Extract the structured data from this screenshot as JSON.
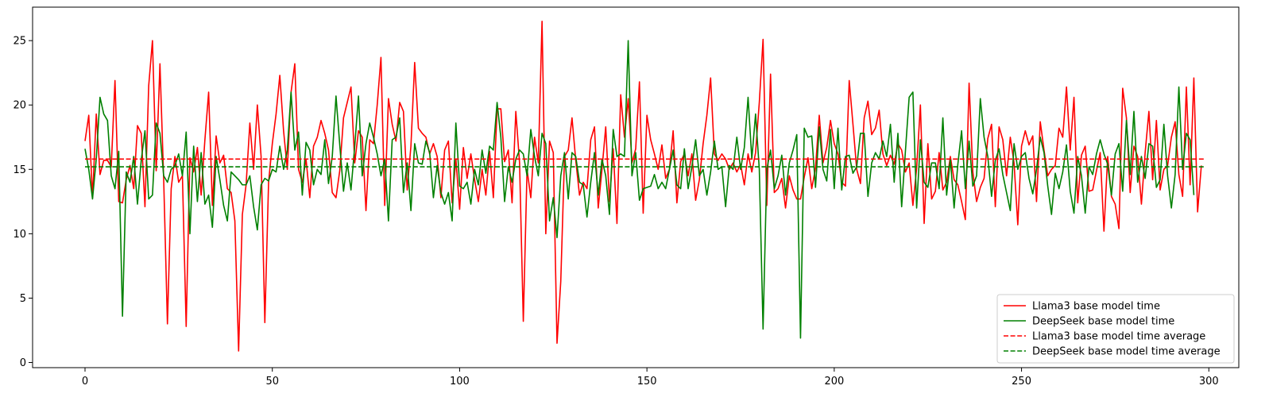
{
  "chart_data": {
    "type": "line",
    "title": "",
    "xlabel": "",
    "ylabel": "",
    "xlim": [
      -14,
      308
    ],
    "ylim": [
      -0.4,
      27.6
    ],
    "xticks": [
      0,
      50,
      100,
      150,
      200,
      250,
      300
    ],
    "yticks": [
      0,
      5,
      10,
      15,
      20,
      25
    ],
    "grid": false,
    "legend_location": "lower-right",
    "series": [
      {
        "name": "Llama3 base model time",
        "color": "#ff0000",
        "style": "solid",
        "x_start": 0,
        "values": [
          17.2,
          19.2,
          12.8,
          19.3,
          14.6,
          15.7,
          15.7,
          15.2,
          21.9,
          12.5,
          12.4,
          14.2,
          15.3,
          13.5,
          18.4,
          17.8,
          12.1,
          21.5,
          25.0,
          14.9,
          23.2,
          14.2,
          3.0,
          13.5,
          16.0,
          14.0,
          14.5,
          2.8,
          15.9,
          14.8,
          16.7,
          13.0,
          17.3,
          21.0,
          12.2,
          17.6,
          15.5,
          16.1,
          13.5,
          13.2,
          11.0,
          0.9,
          11.5,
          13.8,
          18.6,
          15.0,
          20.0,
          16.0,
          3.1,
          14.0,
          17.0,
          19.3,
          22.3,
          18.0,
          15.0,
          21.0,
          23.2,
          15.0,
          14.0,
          15.8,
          12.8,
          16.8,
          17.5,
          18.8,
          17.8,
          16.5,
          13.2,
          12.8,
          14.9,
          19.0,
          20.2,
          21.4,
          15.5,
          18.0,
          17.5,
          11.8,
          17.3,
          17.0,
          20.0,
          23.7,
          12.2,
          20.5,
          18.5,
          17.2,
          20.2,
          19.5,
          13.4,
          16.8,
          23.3,
          18.2,
          17.8,
          17.5,
          16.2,
          17.0,
          16.0,
          12.8,
          16.5,
          17.2,
          12.4,
          15.8,
          11.9,
          16.7,
          14.3,
          16.2,
          14.2,
          12.5,
          15.0,
          13.0,
          16.4,
          12.8,
          19.7,
          19.7,
          15.6,
          16.5,
          12.4,
          19.5,
          15.5,
          3.2,
          15.0,
          12.8,
          17.5,
          15.5,
          26.5,
          10.0,
          17.2,
          16.3,
          1.5,
          6.3,
          16.0,
          16.5,
          19.0,
          15.7,
          13.0,
          14.0,
          13.5,
          17.3,
          18.3,
          12.0,
          15.0,
          18.3,
          12.5,
          16.6,
          10.8,
          20.8,
          17.5,
          20.5,
          15.5,
          16.6,
          21.8,
          11.6,
          19.2,
          17.3,
          16.2,
          15.0,
          16.9,
          14.3,
          15.0,
          18.0,
          12.4,
          15.6,
          16.2,
          14.5,
          16.2,
          12.6,
          14.2,
          17.0,
          19.2,
          22.1,
          16.2,
          15.7,
          16.2,
          15.8,
          15.0,
          15.5,
          14.8,
          15.4,
          13.8,
          16.2,
          14.8,
          16.3,
          20.2,
          25.1,
          12.2,
          22.4,
          13.2,
          13.5,
          14.3,
          12.0,
          14.5,
          13.4,
          12.7,
          12.7,
          14.4,
          15.9,
          13.5,
          15.1,
          19.2,
          15.5,
          16.7,
          18.8,
          17.0,
          16.2,
          14.0,
          13.7,
          21.9,
          18.5,
          15.0,
          13.9,
          19.0,
          20.3,
          17.7,
          18.2,
          19.6,
          16.2,
          15.3,
          16.1,
          15.4,
          17.0,
          16.5,
          14.8,
          15.5,
          12.2,
          15.1,
          20.0,
          10.8,
          17.0,
          12.7,
          13.3,
          16.3,
          13.4,
          14.0,
          16.0,
          14.2,
          13.8,
          12.5,
          11.1,
          21.7,
          14.8,
          12.5,
          13.6,
          14.3,
          17.4,
          18.5,
          12.1,
          18.3,
          17.3,
          14.5,
          17.5,
          15.5,
          10.7,
          16.8,
          18.0,
          16.9,
          17.6,
          12.5,
          18.7,
          16.5,
          14.5,
          15.0,
          15.3,
          18.2,
          17.5,
          21.4,
          16.5,
          20.6,
          12.4,
          16.1,
          16.8,
          13.3,
          13.4,
          14.9,
          16.3,
          10.2,
          16.0,
          12.9,
          12.3,
          10.4,
          21.3,
          19.0,
          13.2,
          16.8,
          16.0,
          12.3,
          16.3,
          19.5,
          14.2,
          18.8,
          13.4,
          15.0,
          15.3,
          17.5,
          18.7,
          14.6,
          12.9,
          21.4,
          13.8,
          22.1,
          11.7,
          15.3
        ]
      },
      {
        "name": "DeepSeek base model time",
        "color": "#008000",
        "style": "solid",
        "x_start": 0,
        "values": [
          16.6,
          15.0,
          12.7,
          15.8,
          20.6,
          19.3,
          18.8,
          14.5,
          13.5,
          16.4,
          3.6,
          14.8,
          14.0,
          16.0,
          12.3,
          15.7,
          18.0,
          12.7,
          13.0,
          18.6,
          17.8,
          14.5,
          14.0,
          15.0,
          15.3,
          16.2,
          14.5,
          17.9,
          10.0,
          16.8,
          12.5,
          16.3,
          12.3,
          13.0,
          10.5,
          16.0,
          14.2,
          12.2,
          11.0,
          14.8,
          14.5,
          14.2,
          13.8,
          13.8,
          14.5,
          12.1,
          10.3,
          13.8,
          14.3,
          14.1,
          15.0,
          14.8,
          16.8,
          15.0,
          16.5,
          21.0,
          16.5,
          17.9,
          13.0,
          17.1,
          16.5,
          13.8,
          15.0,
          14.6,
          17.3,
          13.9,
          16.0,
          20.7,
          16.9,
          13.3,
          15.5,
          13.4,
          16.8,
          20.7,
          14.5,
          17.0,
          18.6,
          17.5,
          16.2,
          14.5,
          15.8,
          11.0,
          17.3,
          17.5,
          19.0,
          13.2,
          15.5,
          11.8,
          17.0,
          15.5,
          15.4,
          17.2,
          16.3,
          12.8,
          15.3,
          13.2,
          12.3,
          13.2,
          11.0,
          18.6,
          13.7,
          13.5,
          14.0,
          12.3,
          15.0,
          13.8,
          16.5,
          14.7,
          16.8,
          16.5,
          20.2,
          17.5,
          12.5,
          15.2,
          14.0,
          15.8,
          16.5,
          16.2,
          14.5,
          18.1,
          16.0,
          14.5,
          17.8,
          17.0,
          11.0,
          12.8,
          9.7,
          14.5,
          16.3,
          12.7,
          16.3,
          16.0,
          14.0,
          13.8,
          11.3,
          14.0,
          16.3,
          13.0,
          15.8,
          14.5,
          11.5,
          18.1,
          16.0,
          16.2,
          16.0,
          25.0,
          14.5,
          16.3,
          12.6,
          13.5,
          13.6,
          13.7,
          14.6,
          13.5,
          14.0,
          13.5,
          15.0,
          16.5,
          13.8,
          13.5,
          16.6,
          13.5,
          15.2,
          17.3,
          14.5,
          15.0,
          13.0,
          14.8,
          17.2,
          15.0,
          15.2,
          12.1,
          15.3,
          15.0,
          17.5,
          15.0,
          16.7,
          20.6,
          15.8,
          19.3,
          15.0,
          2.6,
          15.0,
          16.5,
          13.5,
          14.5,
          16.1,
          13.0,
          15.5,
          16.5,
          17.7,
          1.9,
          18.2,
          17.5,
          17.6,
          13.6,
          18.3,
          15.0,
          14.1,
          18.1,
          13.5,
          18.2,
          13.4,
          16.0,
          16.1,
          14.7,
          15.2,
          17.8,
          17.8,
          12.9,
          15.5,
          16.3,
          15.8,
          17.2,
          16.0,
          18.5,
          14.0,
          17.8,
          12.1,
          16.4,
          20.6,
          21.0,
          12.0,
          17.3,
          14.0,
          13.6,
          15.5,
          15.5,
          13.5,
          19.0,
          13.0,
          15.8,
          12.0,
          15.4,
          18.0,
          13.5,
          17.2,
          13.7,
          14.5,
          20.5,
          17.5,
          16.0,
          12.9,
          15.7,
          16.6,
          14.6,
          13.2,
          11.8,
          17.0,
          15.0,
          16.0,
          16.3,
          14.3,
          13.1,
          15.0,
          17.5,
          16.3,
          13.7,
          11.5,
          14.7,
          13.5,
          14.8,
          16.9,
          13.3,
          11.6,
          16.0,
          14.5,
          11.6,
          15.2,
          14.6,
          16.2,
          17.3,
          16.2,
          15.4,
          13.0,
          16.2,
          17.0,
          13.3,
          18.8,
          14.6,
          19.5,
          14.0,
          16.0,
          14.3,
          17.0,
          16.8,
          13.6,
          14.2,
          18.5,
          14.5,
          12.0,
          14.6,
          21.4,
          15.0,
          17.8,
          17.3,
          13.0
        ]
      },
      {
        "name": "Llama3 base model time average",
        "color": "#ff0000",
        "style": "dashed",
        "x_range": [
          0,
          299
        ],
        "value": 15.8
      },
      {
        "name": "DeepSeek base model time average",
        "color": "#008000",
        "style": "dashed",
        "x_range": [
          0,
          299
        ],
        "value": 15.2
      }
    ]
  }
}
